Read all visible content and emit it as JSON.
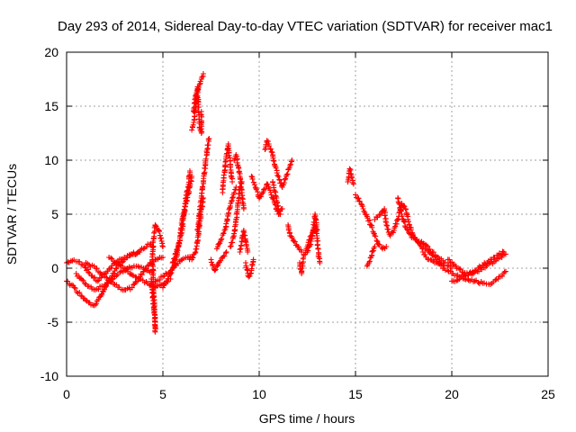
{
  "chart_data": {
    "type": "scatter",
    "title": "Day 293 of 2014, Sidereal Day-to-day VTEC variation (SDTVAR) for receiver mac1",
    "xlabel": "GPS time / hours",
    "ylabel": "SDTVAR / TECUs",
    "xlim": [
      0,
      25
    ],
    "ylim": [
      -10,
      20
    ],
    "xticks": [
      "0",
      "5",
      "10",
      "15",
      "20",
      "25"
    ],
    "yticks": [
      "-10",
      "-5",
      "0",
      "5",
      "10",
      "15",
      "20"
    ],
    "xtick_values": [
      0,
      5,
      10,
      15,
      20,
      25
    ],
    "ytick_values": [
      -10,
      -5,
      0,
      5,
      10,
      15,
      20
    ],
    "grid": true,
    "marker": "+",
    "color": "#ff0000",
    "series": [
      {
        "name": "SDTVAR",
        "tracks": [
          [
            [
              0.0,
              0.5
            ],
            [
              0.3,
              0.7
            ],
            [
              0.6,
              0.6
            ],
            [
              0.9,
              0.3
            ],
            [
              1.2,
              -0.5
            ],
            [
              1.6,
              -1.2
            ],
            [
              2.0,
              -0.5
            ],
            [
              2.5,
              0.5
            ],
            [
              3.0,
              1.0
            ],
            [
              3.5,
              1.3
            ],
            [
              4.0,
              1.8
            ],
            [
              4.3,
              2.2
            ],
            [
              4.5,
              2.0
            ]
          ],
          [
            [
              0.0,
              -1.2
            ],
            [
              0.4,
              -1.8
            ],
            [
              0.8,
              -2.6
            ],
            [
              1.2,
              -3.2
            ],
            [
              1.5,
              -3.4
            ],
            [
              1.8,
              -2.5
            ],
            [
              2.2,
              -1.2
            ],
            [
              2.6,
              0.0
            ],
            [
              3.0,
              0.8
            ],
            [
              3.4,
              1.3
            ],
            [
              3.8,
              1.5
            ]
          ],
          [
            [
              0.5,
              -0.5
            ],
            [
              1.0,
              -1.5
            ],
            [
              1.5,
              -2.0
            ],
            [
              2.0,
              -1.5
            ],
            [
              2.5,
              -0.8
            ],
            [
              3.0,
              -0.2
            ],
            [
              3.5,
              0.2
            ],
            [
              4.0,
              0.0
            ],
            [
              4.5,
              -0.5
            ]
          ],
          [
            [
              1.0,
              0.5
            ],
            [
              1.5,
              0.0
            ],
            [
              2.0,
              -0.8
            ],
            [
              2.5,
              -1.5
            ],
            [
              3.0,
              -2.0
            ],
            [
              3.4,
              -1.8
            ],
            [
              3.8,
              -0.8
            ],
            [
              4.2,
              0.2
            ],
            [
              4.6,
              0.8
            ],
            [
              5.0,
              1.0
            ]
          ],
          [
            [
              2.2,
              1.0
            ],
            [
              2.6,
              0.5
            ],
            [
              3.0,
              0.0
            ],
            [
              3.4,
              -0.6
            ],
            [
              3.8,
              -1.0
            ],
            [
              4.2,
              -1.4
            ],
            [
              4.6,
              -1.8
            ],
            [
              5.0,
              -1.5
            ],
            [
              5.4,
              -1.0
            ]
          ],
          [
            [
              4.4,
              -1.0
            ],
            [
              4.45,
              -2.0
            ],
            [
              4.5,
              -3.0
            ],
            [
              4.55,
              -4.0
            ],
            [
              4.6,
              -5.0
            ],
            [
              4.6,
              -5.9
            ],
            [
              4.5,
              -0.5
            ],
            [
              4.45,
              0.8
            ],
            [
              4.5,
              2.5
            ],
            [
              4.6,
              4.0
            ],
            [
              4.8,
              3.5
            ],
            [
              5.0,
              2.0
            ]
          ],
          [
            [
              4.6,
              -1.2
            ],
            [
              5.0,
              -0.8
            ],
            [
              5.5,
              0.0
            ],
            [
              6.0,
              0.8
            ],
            [
              6.5,
              1.0
            ]
          ],
          [
            [
              5.0,
              -1.8
            ],
            [
              5.4,
              -0.5
            ],
            [
              5.7,
              1.0
            ],
            [
              5.9,
              3.0
            ],
            [
              6.0,
              4.5
            ],
            [
              6.2,
              6.0
            ],
            [
              6.4,
              7.5
            ],
            [
              6.5,
              8.5
            ]
          ],
          [
            [
              5.5,
              0.5
            ],
            [
              5.8,
              2.0
            ],
            [
              6.0,
              3.5
            ],
            [
              6.2,
              6.5
            ],
            [
              6.3,
              7.5
            ],
            [
              6.4,
              9.0
            ]
          ],
          [
            [
              6.3,
              1.0
            ],
            [
              6.5,
              0.8
            ],
            [
              6.7,
              1.5
            ],
            [
              6.8,
              2.5
            ],
            [
              6.9,
              4.0
            ],
            [
              7.0,
              5.5
            ],
            [
              7.1,
              6.5
            ]
          ],
          [
            [
              6.5,
              12.8
            ],
            [
              6.6,
              13.5
            ],
            [
              6.7,
              15.0
            ],
            [
              6.8,
              16.5
            ],
            [
              6.9,
              17.0
            ],
            [
              7.0,
              17.5
            ],
            [
              7.1,
              18.0
            ]
          ],
          [
            [
              6.6,
              14.5
            ],
            [
              6.7,
              16.0
            ],
            [
              6.8,
              16.8
            ],
            [
              6.9,
              13.0
            ],
            [
              7.0,
              12.5
            ],
            [
              7.0,
              14.5
            ]
          ],
          [
            [
              6.8,
              3.5
            ],
            [
              6.9,
              5.0
            ],
            [
              7.0,
              6.5
            ],
            [
              7.1,
              8.0
            ],
            [
              7.2,
              9.5
            ],
            [
              7.3,
              11.0
            ],
            [
              7.4,
              12.0
            ]
          ],
          [
            [
              7.5,
              0.8
            ],
            [
              7.7,
              -0.2
            ],
            [
              7.9,
              0.5
            ],
            [
              8.1,
              1.0
            ],
            [
              8.3,
              1.5
            ]
          ],
          [
            [
              7.8,
              1.8
            ],
            [
              8.0,
              2.5
            ],
            [
              8.2,
              3.5
            ],
            [
              8.4,
              5.0
            ],
            [
              8.6,
              6.5
            ],
            [
              8.8,
              7.5
            ]
          ],
          [
            [
              8.1,
              7.0
            ],
            [
              8.2,
              9.0
            ],
            [
              8.3,
              10.5
            ],
            [
              8.4,
              11.5
            ],
            [
              8.5,
              9.5
            ],
            [
              8.6,
              8.0
            ]
          ],
          [
            [
              8.5,
              2.0
            ],
            [
              8.7,
              3.0
            ],
            [
              8.8,
              4.5
            ],
            [
              8.9,
              6.0
            ],
            [
              9.0,
              7.5
            ],
            [
              9.1,
              8.0
            ]
          ],
          [
            [
              8.7,
              10.0
            ],
            [
              8.8,
              10.5
            ],
            [
              8.9,
              9.5
            ],
            [
              9.0,
              8.5
            ],
            [
              9.1,
              7.0
            ],
            [
              9.2,
              5.5
            ]
          ],
          [
            [
              9.0,
              1.5
            ],
            [
              9.1,
              2.5
            ],
            [
              9.2,
              3.5
            ],
            [
              9.3,
              2.5
            ],
            [
              9.4,
              1.5
            ]
          ],
          [
            [
              9.3,
              0.5
            ],
            [
              9.45,
              -0.8
            ],
            [
              9.6,
              -0.2
            ],
            [
              9.7,
              0.8
            ]
          ],
          [
            [
              9.6,
              8.5
            ],
            [
              9.8,
              7.5
            ],
            [
              10.0,
              6.5
            ],
            [
              10.2,
              7.0
            ],
            [
              10.4,
              7.8
            ],
            [
              10.6,
              7.0
            ],
            [
              10.8,
              6.0
            ],
            [
              11.0,
              5.0
            ],
            [
              11.2,
              5.5
            ]
          ],
          [
            [
              10.3,
              11.0
            ],
            [
              10.4,
              11.8
            ],
            [
              10.5,
              11.5
            ],
            [
              10.6,
              11.0
            ],
            [
              10.7,
              10.5
            ],
            [
              10.8,
              9.5
            ],
            [
              11.0,
              8.5
            ],
            [
              11.2,
              7.5
            ],
            [
              11.4,
              8.5
            ],
            [
              11.6,
              9.5
            ],
            [
              11.7,
              10.0
            ]
          ],
          [
            [
              10.7,
              8.0
            ],
            [
              10.9,
              6.5
            ],
            [
              11.0,
              5.5
            ],
            [
              11.1,
              5.0
            ]
          ],
          [
            [
              11.5,
              4.0
            ],
            [
              11.6,
              3.0
            ],
            [
              11.8,
              2.5
            ],
            [
              12.0,
              2.0
            ],
            [
              12.2,
              1.5
            ]
          ],
          [
            [
              12.1,
              0.5
            ],
            [
              12.2,
              -0.5
            ],
            [
              12.3,
              1.0
            ],
            [
              12.5,
              2.0
            ],
            [
              12.7,
              3.0
            ],
            [
              12.9,
              4.0
            ],
            [
              13.0,
              3.0
            ],
            [
              13.1,
              1.0
            ],
            [
              13.15,
              0.5
            ]
          ],
          [
            [
              12.5,
              1.5
            ],
            [
              12.7,
              2.5
            ],
            [
              12.8,
              3.5
            ],
            [
              12.9,
              5.0
            ],
            [
              13.0,
              3.5
            ]
          ],
          [
            [
              14.6,
              8.0
            ],
            [
              14.7,
              9.2
            ],
            [
              14.8,
              8.5
            ],
            [
              14.9,
              7.8
            ]
          ],
          [
            [
              15.0,
              6.8
            ],
            [
              15.2,
              6.2
            ],
            [
              15.4,
              5.5
            ],
            [
              15.6,
              4.8
            ],
            [
              15.8,
              4.0
            ],
            [
              16.0,
              3.0
            ],
            [
              16.2,
              2.2
            ],
            [
              16.4,
              1.8
            ],
            [
              16.6,
              2.0
            ]
          ],
          [
            [
              15.6,
              0.2
            ],
            [
              15.7,
              0.5
            ],
            [
              15.8,
              1.0
            ],
            [
              15.9,
              1.6
            ],
            [
              16.0,
              2.0
            ]
          ],
          [
            [
              16.0,
              4.5
            ],
            [
              16.3,
              5.0
            ],
            [
              16.5,
              5.5
            ],
            [
              16.6,
              4.0
            ],
            [
              16.8,
              3.0
            ],
            [
              17.0,
              3.5
            ],
            [
              17.2,
              4.5
            ],
            [
              17.4,
              6.0
            ],
            [
              17.6,
              5.5
            ],
            [
              17.8,
              4.0
            ],
            [
              18.0,
              3.0
            ],
            [
              18.2,
              2.5
            ],
            [
              18.4,
              2.0
            ],
            [
              18.6,
              1.8
            ],
            [
              18.8,
              1.5
            ],
            [
              19.0,
              1.2
            ],
            [
              19.2,
              0.8
            ],
            [
              19.4,
              0.5
            ],
            [
              19.6,
              0.2
            ]
          ],
          [
            [
              17.2,
              6.5
            ],
            [
              17.4,
              5.0
            ],
            [
              17.6,
              3.8
            ],
            [
              17.8,
              3.2
            ],
            [
              18.0,
              2.8
            ],
            [
              18.3,
              2.5
            ],
            [
              18.6,
              2.2
            ],
            [
              19.0,
              1.5
            ],
            [
              19.3,
              1.0
            ],
            [
              19.6,
              0.5
            ],
            [
              20.0,
              0.0
            ]
          ],
          [
            [
              18.5,
              1.5
            ],
            [
              18.8,
              0.8
            ],
            [
              19.2,
              0.5
            ],
            [
              19.6,
              0.0
            ],
            [
              20.0,
              -0.5
            ],
            [
              20.4,
              -0.8
            ],
            [
              20.8,
              -1.0
            ],
            [
              21.2,
              -1.2
            ],
            [
              21.6,
              -1.4
            ],
            [
              22.0,
              -1.5
            ],
            [
              22.4,
              -1.0
            ],
            [
              22.8,
              -0.3
            ]
          ],
          [
            [
              19.8,
              0.8
            ],
            [
              20.2,
              0.2
            ],
            [
              20.6,
              -0.4
            ],
            [
              21.0,
              -0.5
            ],
            [
              21.4,
              -0.3
            ],
            [
              21.8,
              0.2
            ],
            [
              22.2,
              0.6
            ],
            [
              22.6,
              1.0
            ],
            [
              22.8,
              1.3
            ]
          ],
          [
            [
              20.0,
              -1.2
            ],
            [
              20.4,
              -1.0
            ],
            [
              20.8,
              -0.6
            ],
            [
              21.2,
              -0.2
            ],
            [
              21.6,
              0.3
            ],
            [
              22.0,
              0.8
            ],
            [
              22.4,
              1.2
            ],
            [
              22.7,
              1.5
            ]
          ]
        ]
      }
    ]
  }
}
